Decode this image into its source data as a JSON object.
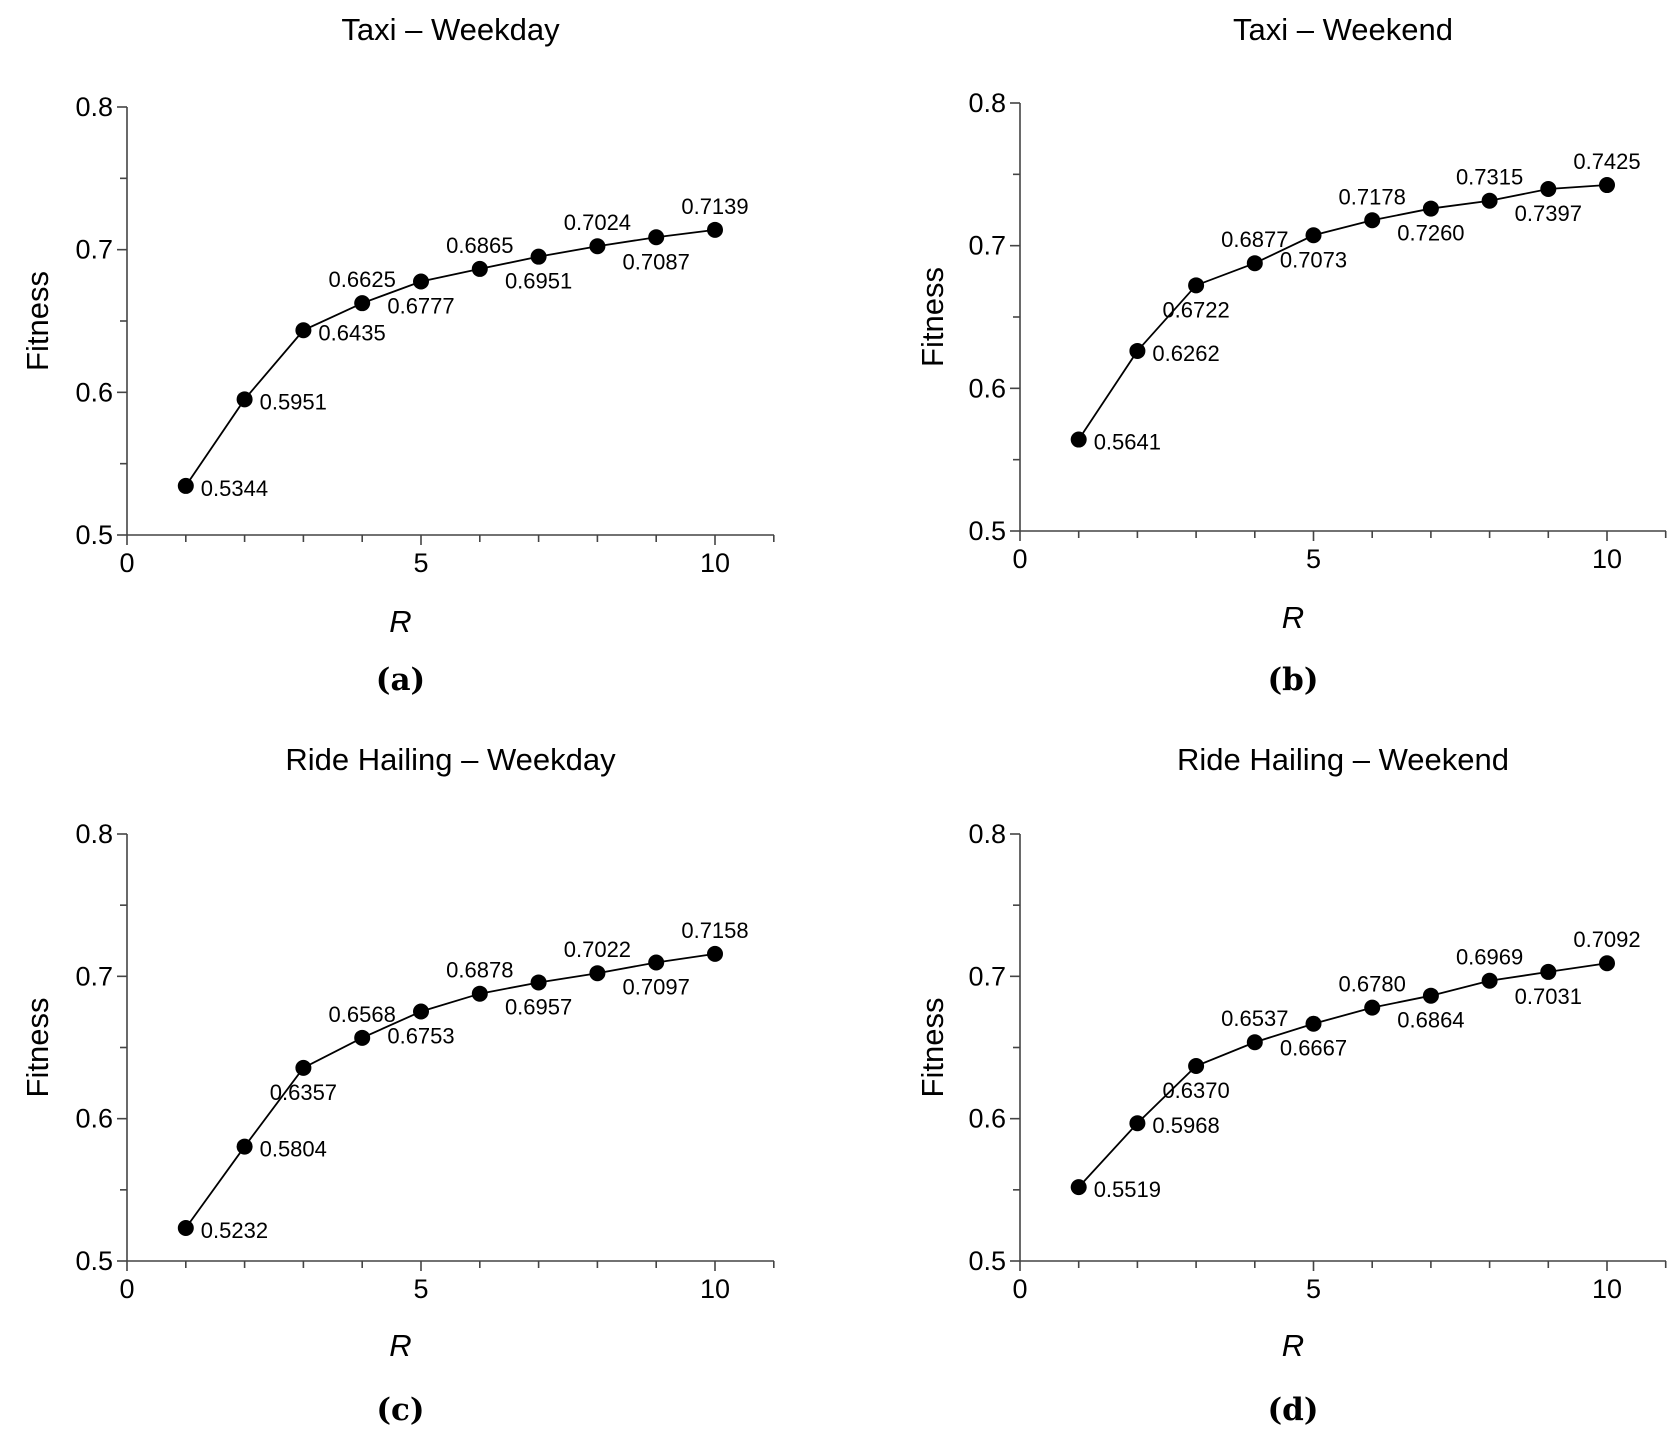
{
  "chart_data": [
    {
      "type": "line",
      "title": "Taxi – Weekday",
      "panel_label": "(a)",
      "xlabel": "R",
      "ylabel": "Fitness",
      "xlim": [
        0,
        11
      ],
      "ylim": [
        0.5,
        0.8
      ],
      "xticks": [
        0,
        5,
        10
      ],
      "xtick_labels": [
        "0",
        "5",
        "10"
      ],
      "yticks": [
        0.5,
        0.6,
        0.7,
        0.8
      ],
      "ytick_labels": [
        "0.5",
        "0.6",
        "0.7",
        "0.8"
      ],
      "grid": false,
      "series": [
        {
          "x": [
            1,
            2,
            3,
            4,
            5,
            6,
            7,
            8,
            9,
            10
          ],
          "values": [
            0.5344,
            0.5951,
            0.6435,
            0.6625,
            0.6777,
            0.6865,
            0.6951,
            0.7024,
            0.7087,
            0.7139
          ],
          "labels": [
            "0.5344",
            "0.5951",
            "0.6435",
            "0.6625",
            "0.6777",
            "0.6865",
            "0.6951",
            "0.7024",
            "0.7087",
            "0.7139"
          ]
        }
      ]
    },
    {
      "type": "line",
      "title": "Taxi – Weekend",
      "panel_label": "(b)",
      "xlabel": "R",
      "ylabel": "Fitness",
      "xlim": [
        0,
        11
      ],
      "ylim": [
        0.5,
        0.8
      ],
      "xticks": [
        0,
        5,
        10
      ],
      "xtick_labels": [
        "0",
        "5",
        "10"
      ],
      "yticks": [
        0.5,
        0.6,
        0.7,
        0.8
      ],
      "ytick_labels": [
        "0.5",
        "0.6",
        "0.7",
        "0.8"
      ],
      "grid": false,
      "series": [
        {
          "x": [
            1,
            2,
            3,
            4,
            5,
            6,
            7,
            8,
            9,
            10
          ],
          "values": [
            0.5641,
            0.6262,
            0.6722,
            0.6877,
            0.7073,
            0.7178,
            0.726,
            0.7315,
            0.7397,
            0.7425
          ],
          "labels": [
            "0.5641",
            "0.6262",
            "0.6722",
            "0.6877",
            "0.7073",
            "0.7178",
            "0.7260",
            "0.7315",
            "0.7397",
            "0.7425"
          ]
        }
      ]
    },
    {
      "type": "line",
      "title": "Ride Hailing – Weekday",
      "panel_label": "(c)",
      "xlabel": "R",
      "ylabel": "Fitness",
      "xlim": [
        0,
        11
      ],
      "ylim": [
        0.5,
        0.8
      ],
      "xticks": [
        0,
        5,
        10
      ],
      "xtick_labels": [
        "0",
        "5",
        "10"
      ],
      "yticks": [
        0.5,
        0.6,
        0.7,
        0.8
      ],
      "ytick_labels": [
        "0.5",
        "0.6",
        "0.7",
        "0.8"
      ],
      "grid": false,
      "series": [
        {
          "x": [
            1,
            2,
            3,
            4,
            5,
            6,
            7,
            8,
            9,
            10
          ],
          "values": [
            0.5232,
            0.5804,
            0.6357,
            0.6568,
            0.6753,
            0.6878,
            0.6957,
            0.7022,
            0.7097,
            0.7158
          ],
          "labels": [
            "0.5232",
            "0.5804",
            "0.6357",
            "0.6568",
            "0.6753",
            "0.6878",
            "0.6957",
            "0.7022",
            "0.7097",
            "0.7158"
          ]
        }
      ]
    },
    {
      "type": "line",
      "title": "Ride Hailing – Weekend",
      "panel_label": "(d)",
      "xlabel": "R",
      "ylabel": "Fitness",
      "xlim": [
        0,
        11
      ],
      "ylim": [
        0.5,
        0.8
      ],
      "xticks": [
        0,
        5,
        10
      ],
      "xtick_labels": [
        "0",
        "5",
        "10"
      ],
      "yticks": [
        0.5,
        0.6,
        0.7,
        0.8
      ],
      "ytick_labels": [
        "0.5",
        "0.6",
        "0.7",
        "0.8"
      ],
      "grid": false,
      "series": [
        {
          "x": [
            1,
            2,
            3,
            4,
            5,
            6,
            7,
            8,
            9,
            10
          ],
          "values": [
            0.5519,
            0.5968,
            0.637,
            0.6537,
            0.6667,
            0.678,
            0.6864,
            0.6969,
            0.7031,
            0.7092
          ],
          "labels": [
            "0.5519",
            "0.5968",
            "0.6370",
            "0.6537",
            "0.6667",
            "0.6780",
            "0.6864",
            "0.6969",
            "0.7031",
            "0.7092"
          ]
        }
      ]
    }
  ]
}
